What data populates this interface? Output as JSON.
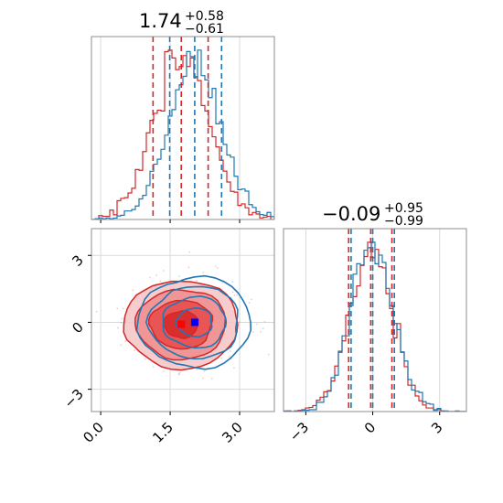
{
  "chart_data": {
    "type": "corner",
    "colors": {
      "series_a": "#d62728",
      "series_b": "#1f77b4",
      "marker_a": "#ff0000",
      "marker_b": "#0000ff"
    },
    "series": [
      {
        "key": "a"
      },
      {
        "key": "b"
      }
    ],
    "panels": {
      "hist_x": {
        "title": {
          "main": "1.74",
          "sup": "+0.58",
          "sub": "−0.61"
        },
        "xlim": [
          -0.2,
          3.75
        ],
        "x_grid": [
          0.0,
          1.5,
          3.0
        ],
        "quantiles": {
          "a": [
            1.13,
            1.74,
            2.32
          ],
          "b": [
            1.49,
            2.03,
            2.61
          ]
        },
        "mean": {
          "a": 1.74,
          "b": 2.03
        },
        "sd": {
          "a": 0.6,
          "b": 0.58
        }
      },
      "scatter": {
        "xlim": [
          -0.2,
          3.75
        ],
        "ylim": [
          -4.0,
          4.2
        ],
        "x_ticks": [
          0.0,
          1.5,
          3.0
        ],
        "x_tick_labels": [
          "0.0",
          "1.5",
          "3.0"
        ],
        "y_ticks": [
          3,
          0,
          -3
        ],
        "y_tick_labels": [
          "3",
          "0",
          "−3"
        ],
        "center": {
          "a": [
            1.74,
            -0.09
          ],
          "b": [
            2.03,
            0.0
          ]
        }
      },
      "hist_y": {
        "title": {
          "main": "−0.09",
          "sup": "+0.95",
          "sub": "−0.99"
        },
        "xlim": [
          -4.0,
          4.2
        ],
        "x_ticks": [
          -3,
          0,
          3
        ],
        "x_tick_labels": [
          "−3",
          "0",
          "3"
        ],
        "quantiles": {
          "a": [
            -1.08,
            -0.09,
            0.86
          ],
          "b": [
            -0.97,
            0.0,
            0.97
          ]
        },
        "mean": {
          "a": -0.09,
          "b": 0.0
        },
        "sd": {
          "a": 0.97,
          "b": 0.97
        }
      }
    }
  }
}
